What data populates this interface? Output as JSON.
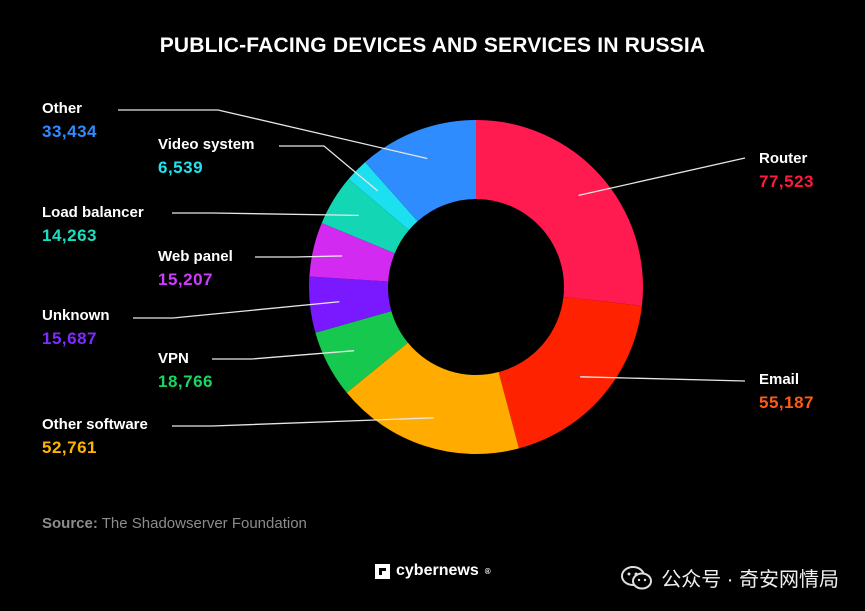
{
  "chart_data": {
    "type": "pie",
    "donut": true,
    "title": "PUBLIC-FACING DEVICES AND SERVICES IN RUSSIA",
    "slices": [
      {
        "name": "Router",
        "value": 77523,
        "display": "77,523",
        "color": "#ff1a50",
        "label_color": "#ff1a3d"
      },
      {
        "name": "Email",
        "value": 55187,
        "display": "55,187",
        "color": "#ff2200",
        "label_color": "#ff5a14"
      },
      {
        "name": "Other software",
        "value": 52761,
        "display": "52,761",
        "color": "#ffab00",
        "label_color": "#ffb400"
      },
      {
        "name": "VPN",
        "value": 18766,
        "display": "18,766",
        "color": "#16c84e",
        "label_color": "#18d660"
      },
      {
        "name": "Unknown",
        "value": 15687,
        "display": "15,687",
        "color": "#7a18ff",
        "label_color": "#7d2bff"
      },
      {
        "name": "Web panel",
        "value": 15207,
        "display": "15,207",
        "color": "#d22af0",
        "label_color": "#d03bff"
      },
      {
        "name": "Load balancer",
        "value": 14263,
        "display": "14,263",
        "color": "#12d6b4",
        "label_color": "#16e0c0"
      },
      {
        "name": "Video system",
        "value": 6539,
        "display": "6,539",
        "color": "#1ce0f0",
        "label_color": "#1ee4f0"
      },
      {
        "name": "Other",
        "value": 33434,
        "display": "33,434",
        "color": "#2e8cff",
        "label_color": "#2e8cff"
      }
    ]
  },
  "source": {
    "prefix": "Source:",
    "text": "The Shadowserver Foundation"
  },
  "brand": {
    "name": "cybernews",
    "mark": "®"
  },
  "watermark": {
    "text": "公众号 · 奇安网情局"
  }
}
